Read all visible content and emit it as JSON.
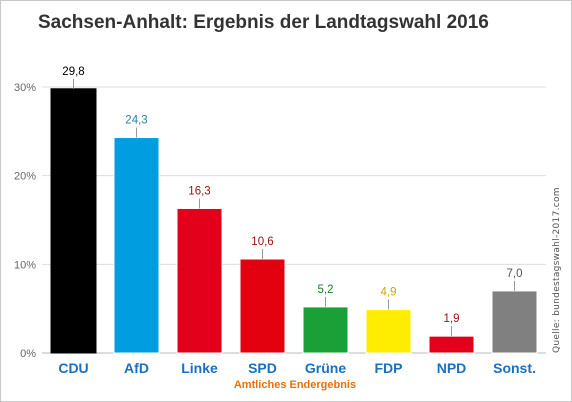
{
  "chart_data": {
    "type": "bar",
    "title": "Sachsen-Anhalt: Ergebnis der Landtagswahl 2016",
    "xlabel": "Amtliches Endergebnis",
    "ylabel": "",
    "source": "Quelle: bundestagswahl-2017.com",
    "ylim": [
      0,
      30
    ],
    "yticks": [
      0,
      10,
      20,
      30
    ],
    "ytick_labels": [
      "0%",
      "10%",
      "20%",
      "30%"
    ],
    "grid": true,
    "categories": [
      "CDU",
      "AfD",
      "Linke",
      "SPD",
      "Grüne",
      "FDP",
      "NPD",
      "Sonst."
    ],
    "values": [
      29.8,
      24.3,
      16.3,
      10.6,
      5.2,
      4.9,
      1.9,
      7.0
    ],
    "value_labels": [
      "29,8",
      "24,3",
      "16,3",
      "10,6",
      "5,2",
      "4,9",
      "1,9",
      "7,0"
    ],
    "bar_colors": [
      "#000000",
      "#009ee0",
      "#e2001a",
      "#e3000f",
      "#1aa037",
      "#ffed00",
      "#e2001a",
      "#808080"
    ],
    "value_label_colors": [
      "#000000",
      "#2b7fb0",
      "#a01010",
      "#a01010",
      "#1f7a2a",
      "#c8a800",
      "#a01010",
      "#555555"
    ],
    "category_label_color": "#1a6fbf",
    "xlabel_color": "#e8700a"
  }
}
